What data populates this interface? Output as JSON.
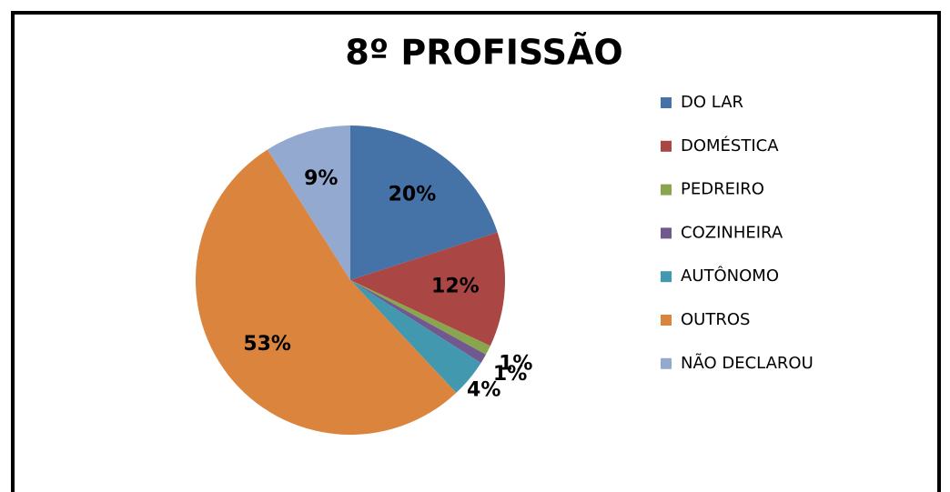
{
  "chart_data": {
    "type": "pie",
    "title": "8º PROFISSÃO",
    "categories": [
      "DO LAR",
      "DOMÉSTICA",
      "PEDREIRO",
      "COZINHEIRA",
      "AUTÔNOMO",
      "OUTROS",
      "NÃO DECLAROU"
    ],
    "values": [
      20,
      12,
      1,
      1,
      4,
      53,
      9
    ],
    "value_labels": [
      "20%",
      "12%",
      "1%",
      "1%",
      "4%",
      "53%",
      "9%"
    ],
    "colors": [
      "#4572a7",
      "#aa4643",
      "#89a54e",
      "#71588f",
      "#4198af",
      "#db843d",
      "#93a9cf"
    ],
    "legend": "right"
  }
}
